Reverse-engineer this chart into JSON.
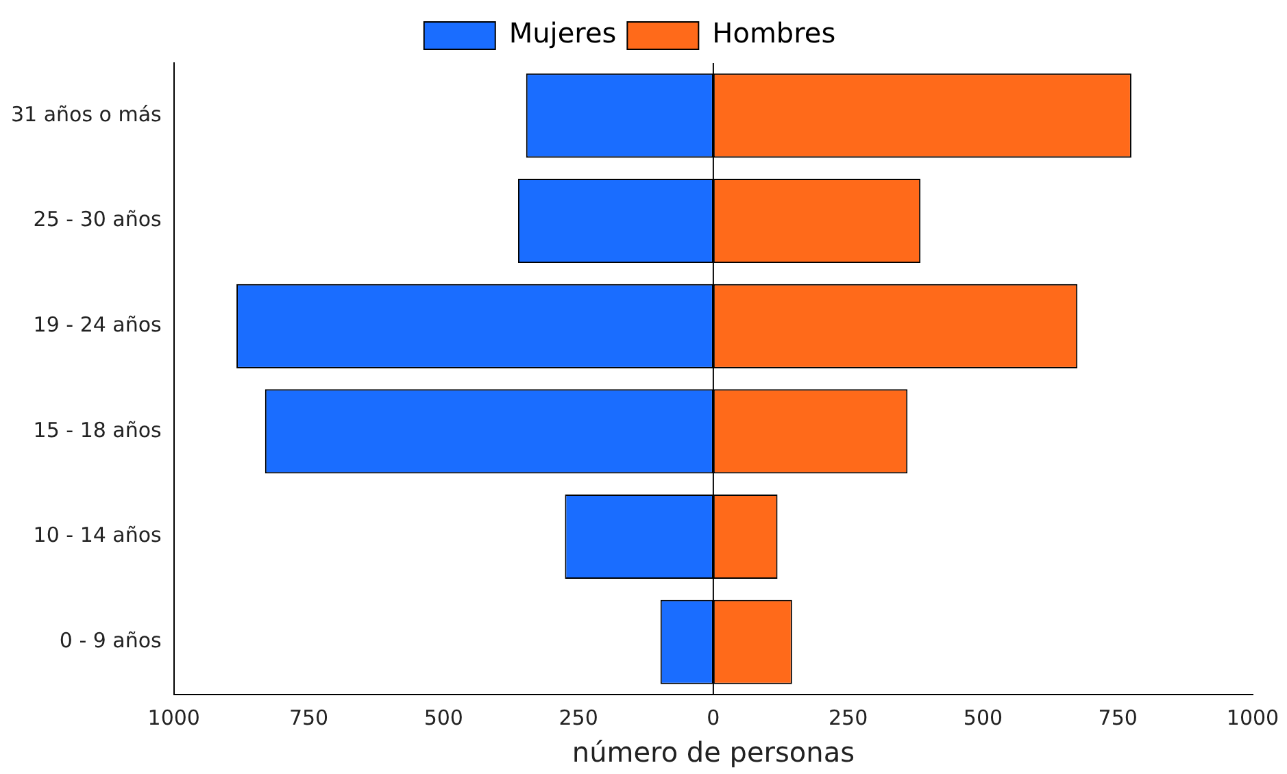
{
  "chart_data": {
    "type": "bar",
    "orientation": "horizontal",
    "stacked": true,
    "xlabel": "número de personas",
    "categories": [
      "31 años o más",
      "25 - 30 años",
      "19 - 24 años",
      "15 - 18 años",
      "10 - 14 años",
      "0 - 9 años"
    ],
    "series": [
      {
        "name": "Mujeres",
        "color": "#1a6dff",
        "values": [
          -347,
          -362,
          -884,
          -831,
          -275,
          -98
        ]
      },
      {
        "name": "Hombres",
        "color": "#ff6a1a",
        "values": [
          775,
          384,
          675,
          360,
          119,
          146
        ]
      }
    ],
    "xlim": [
      -1000,
      1000
    ],
    "xticks": [
      {
        "value": -1000,
        "label": "1000"
      },
      {
        "value": -750,
        "label": "750"
      },
      {
        "value": -500,
        "label": "500"
      },
      {
        "value": -250,
        "label": "250"
      },
      0,
      250,
      500,
      750,
      1000
    ],
    "ref_lines": [
      {
        "axis": "x",
        "value": 0,
        "color": "#000000"
      }
    ],
    "legend": "top",
    "grid": false
  }
}
